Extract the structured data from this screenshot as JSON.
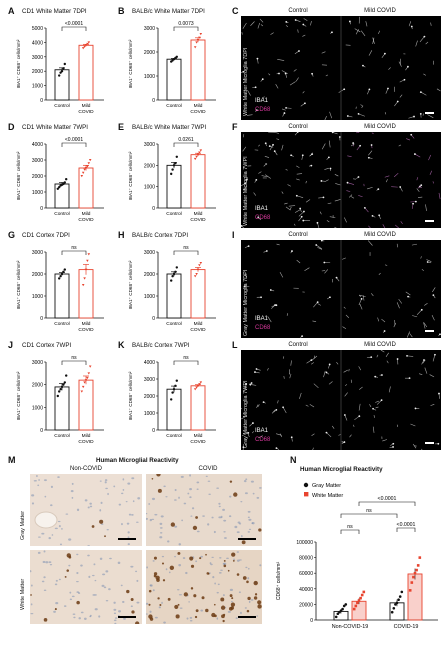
{
  "palette": {
    "control": "#111111",
    "covid": "#e8442f",
    "gray_matter": "#111111",
    "white_matter": "#e8442f",
    "cd68": "#d4389a"
  },
  "labels": {
    "A": "A",
    "B": "B",
    "C": "C",
    "D": "D",
    "E": "E",
    "F": "F",
    "G": "G",
    "H": "H",
    "I": "I",
    "J": "J",
    "K": "K",
    "L": "L",
    "M": "M",
    "N": "N"
  },
  "microscopy": {
    "control": "Control",
    "mild_covid": "Mild COVID",
    "iba1": "IBA1",
    "cd68": "CD68",
    "c_side": "White Matter Microglia 7DPI",
    "f_side": "White Matter Microglia 7WPI",
    "i_side": "Gray Matter Microglia 7DPI",
    "l_side": "Gray Matter Microglia 7WPI"
  },
  "histology": {
    "title": "Human Microglial Reactivity",
    "non_covid": "Non-COVID",
    "covid": "COVID",
    "gray_matter": "Gray Matter",
    "white_matter": "White Matter"
  },
  "chart_data": [
    {
      "id": "A",
      "type": "bar",
      "title": "CD1 White Matter 7DPI",
      "categories": [
        "Control",
        "Mild COVID"
      ],
      "values": [
        2100,
        3800
      ],
      "ylabel": "IBA1⁺ CD68⁺ cells/mm²",
      "ylim": [
        0,
        5000
      ],
      "yticks": [
        0,
        1000,
        2000,
        3000,
        4000,
        5000
      ],
      "annotation": "<0.0001",
      "points": [
        [
          1700,
          1900,
          2000,
          2200,
          2500
        ],
        [
          3600,
          3700,
          3800,
          3900,
          4000
        ]
      ]
    },
    {
      "id": "B",
      "type": "bar",
      "title": "BALB/c White Matter 7DPI",
      "categories": [
        "Control",
        "Mild COVID"
      ],
      "values": [
        1700,
        2500
      ],
      "ylabel": "IBA1⁺ CD68⁺ cells/mm²",
      "ylim": [
        0,
        3000
      ],
      "yticks": [
        0,
        1000,
        2000,
        3000
      ],
      "annotation": "0.0073",
      "points": [
        [
          1600,
          1650,
          1700,
          1750,
          1800
        ],
        [
          2200,
          2400,
          2500,
          2600,
          2750
        ]
      ]
    },
    {
      "id": "D",
      "type": "bar",
      "title": "CD1 White Matter 7WPI",
      "categories": [
        "Control",
        "Mild COVID"
      ],
      "values": [
        1500,
        2500
      ],
      "ylabel": "IBA1⁺ CD68⁺ cells/mm²",
      "ylim": [
        0,
        4000
      ],
      "yticks": [
        0,
        1000,
        2000,
        3000,
        4000
      ],
      "annotation": "<0.0001",
      "points": [
        [
          1200,
          1300,
          1400,
          1450,
          1500,
          1600,
          1800
        ],
        [
          2000,
          2200,
          2400,
          2500,
          2600,
          2800,
          3000
        ]
      ]
    },
    {
      "id": "E",
      "type": "bar",
      "title": "BALB/c White Matter 7WPI",
      "categories": [
        "Control",
        "Mild COVID"
      ],
      "values": [
        2000,
        2500
      ],
      "ylabel": "IBA1⁺ CD68⁺ cells/mm²",
      "ylim": [
        0,
        3000
      ],
      "yticks": [
        0,
        1000,
        2000,
        3000
      ],
      "annotation": "0.0261",
      "points": [
        [
          1600,
          1800,
          2000,
          2100,
          2400
        ],
        [
          2300,
          2400,
          2500,
          2600,
          2700
        ]
      ]
    },
    {
      "id": "G",
      "type": "bar",
      "title": "CD1 Cortex 7DPI",
      "categories": [
        "Control",
        "Mild COVID"
      ],
      "values": [
        2000,
        2200
      ],
      "ylabel": "IBA1⁺ CD68⁺ cells/mm²",
      "ylim": [
        0,
        3000
      ],
      "yticks": [
        0,
        1000,
        2000,
        3000
      ],
      "annotation": "ns",
      "points": [
        [
          1800,
          1900,
          2000,
          2100,
          2200
        ],
        [
          1500,
          1800,
          2200,
          2600,
          2900
        ]
      ]
    },
    {
      "id": "H",
      "type": "bar",
      "title": "BALB/c Cortex 7DPI",
      "categories": [
        "Control",
        "Mild COVID"
      ],
      "values": [
        2000,
        2200
      ],
      "ylabel": "IBA1⁺ CD68⁺ cells/mm²",
      "ylim": [
        0,
        3000
      ],
      "yticks": [
        0,
        1000,
        2000,
        3000
      ],
      "annotation": "ns",
      "points": [
        [
          1700,
          1900,
          2000,
          2100,
          2300
        ],
        [
          1900,
          2000,
          2200,
          2400,
          2500
        ]
      ]
    },
    {
      "id": "J",
      "type": "bar",
      "title": "CD1 Cortex 7WPI",
      "categories": [
        "Control",
        "Mild COVID"
      ],
      "values": [
        1900,
        2200
      ],
      "ylabel": "IBA1⁺ CD68⁺ cells/mm²",
      "ylim": [
        0,
        3000
      ],
      "yticks": [
        0,
        1000,
        2000,
        3000
      ],
      "annotation": "ns",
      "points": [
        [
          1500,
          1700,
          1800,
          1900,
          2000,
          2100,
          2400
        ],
        [
          1700,
          1900,
          2100,
          2200,
          2300,
          2500,
          2800
        ]
      ]
    },
    {
      "id": "K",
      "type": "bar",
      "title": "BALB/c Cortex 7WPI",
      "categories": [
        "Control",
        "Mild COVID"
      ],
      "values": [
        2400,
        2600
      ],
      "ylabel": "IBA1⁺ CD68⁺ cells/mm²",
      "ylim": [
        0,
        4000
      ],
      "yticks": [
        0,
        1000,
        2000,
        3000,
        4000
      ],
      "annotation": "ns",
      "points": [
        [
          1800,
          2200,
          2400,
          2600,
          2900
        ],
        [
          2400,
          2500,
          2600,
          2700,
          2800
        ]
      ]
    },
    {
      "id": "N",
      "type": "bar",
      "title": "Human Microglial Reactivity",
      "categories": [
        "Non-COVID-19",
        "COVID-19"
      ],
      "series": [
        {
          "name": "Gray Matter",
          "values": [
            11000,
            22000
          ]
        },
        {
          "name": "White Matter",
          "values": [
            24000,
            59000
          ]
        }
      ],
      "ylabel": "CD68⁺ cells/mm²",
      "ylim": [
        0,
        100000
      ],
      "yticks": [
        0,
        20000,
        40000,
        60000,
        80000,
        100000
      ],
      "annotations": [
        "ns",
        "ns",
        "<0.0001",
        "<0.0001"
      ],
      "points": [
        [
          [
            4000,
            8000,
            10000,
            12000,
            14000,
            18000,
            20000
          ],
          [
            14000,
            18000,
            22000,
            25000,
            28000,
            32000,
            36000
          ]
        ],
        [
          [
            10000,
            15000,
            20000,
            22000,
            26000,
            30000,
            36000
          ],
          [
            38000,
            48000,
            55000,
            60000,
            64000,
            70000,
            80000
          ]
        ]
      ]
    }
  ]
}
